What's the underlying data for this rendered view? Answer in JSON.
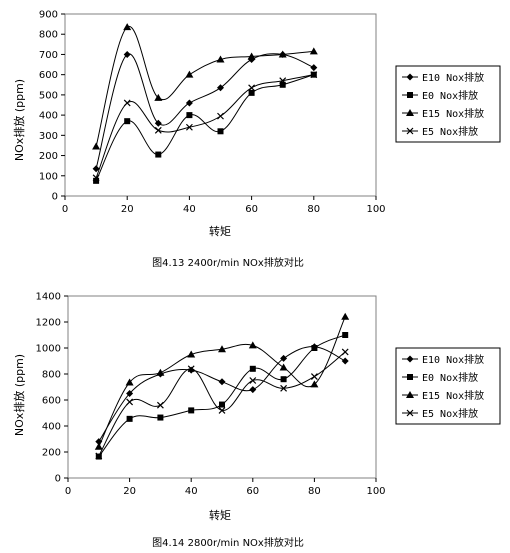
{
  "chart_data": [
    {
      "type": "line",
      "caption": "图4.13 2400r/min NOx排放对比",
      "xlabel": "转矩",
      "ylabel": "NOx排放 (ppm)",
      "xlim": [
        0,
        100
      ],
      "ylim": [
        0,
        900
      ],
      "xticks": [
        0,
        20,
        40,
        60,
        80,
        100
      ],
      "yticks": [
        0,
        100,
        200,
        300,
        400,
        500,
        600,
        700,
        800,
        900
      ],
      "grid": false,
      "legend_position": "right",
      "series": [
        {
          "name": "E10 Nox排放",
          "marker": "diamond",
          "x": [
            10,
            20,
            30,
            40,
            50,
            60,
            70,
            80
          ],
          "y": [
            135,
            700,
            360,
            460,
            535,
            675,
            700,
            635
          ]
        },
        {
          "name": "E0 Nox排放",
          "marker": "square",
          "x": [
            10,
            20,
            30,
            40,
            50,
            60,
            70,
            80
          ],
          "y": [
            75,
            370,
            205,
            400,
            320,
            510,
            550,
            600
          ]
        },
        {
          "name": "E15 Nox排放",
          "marker": "triangle",
          "x": [
            10,
            20,
            30,
            40,
            50,
            60,
            70,
            80
          ],
          "y": [
            245,
            835,
            485,
            600,
            675,
            690,
            700,
            715
          ]
        },
        {
          "name": "E5 Nox排放",
          "marker": "x",
          "x": [
            10,
            20,
            30,
            40,
            50,
            60,
            70,
            80
          ],
          "y": [
            90,
            460,
            325,
            340,
            395,
            535,
            570,
            600
          ]
        }
      ]
    },
    {
      "type": "line",
      "caption": "图4.14 2800r/min NOx排放对比",
      "xlabel": "转矩",
      "ylabel": "NOx排放 (ppm)",
      "xlim": [
        0,
        100
      ],
      "ylim": [
        0,
        1400
      ],
      "xticks": [
        0,
        20,
        40,
        60,
        80,
        100
      ],
      "yticks": [
        0,
        200,
        400,
        600,
        800,
        1000,
        1200,
        1400
      ],
      "grid": false,
      "legend_position": "right",
      "series": [
        {
          "name": "E10 Nox排放",
          "marker": "diamond",
          "x": [
            10,
            20,
            30,
            40,
            50,
            60,
            70,
            80,
            90
          ],
          "y": [
            280,
            650,
            800,
            830,
            740,
            680,
            920,
            1010,
            900
          ]
        },
        {
          "name": "E0 Nox排放",
          "marker": "square",
          "x": [
            10,
            20,
            30,
            40,
            50,
            60,
            70,
            80,
            90
          ],
          "y": [
            165,
            455,
            465,
            520,
            565,
            840,
            760,
            1000,
            1100
          ]
        },
        {
          "name": "E15 Nox排放",
          "marker": "triangle",
          "x": [
            10,
            20,
            30,
            40,
            50,
            60,
            70,
            80,
            90
          ],
          "y": [
            240,
            735,
            810,
            950,
            990,
            1020,
            850,
            720,
            1240
          ]
        },
        {
          "name": "E5 Nox排放",
          "marker": "x",
          "x": [
            10,
            20,
            30,
            40,
            50,
            60,
            70,
            80,
            90
          ],
          "y": [
            170,
            585,
            560,
            840,
            520,
            750,
            690,
            780,
            970
          ]
        }
      ]
    }
  ]
}
